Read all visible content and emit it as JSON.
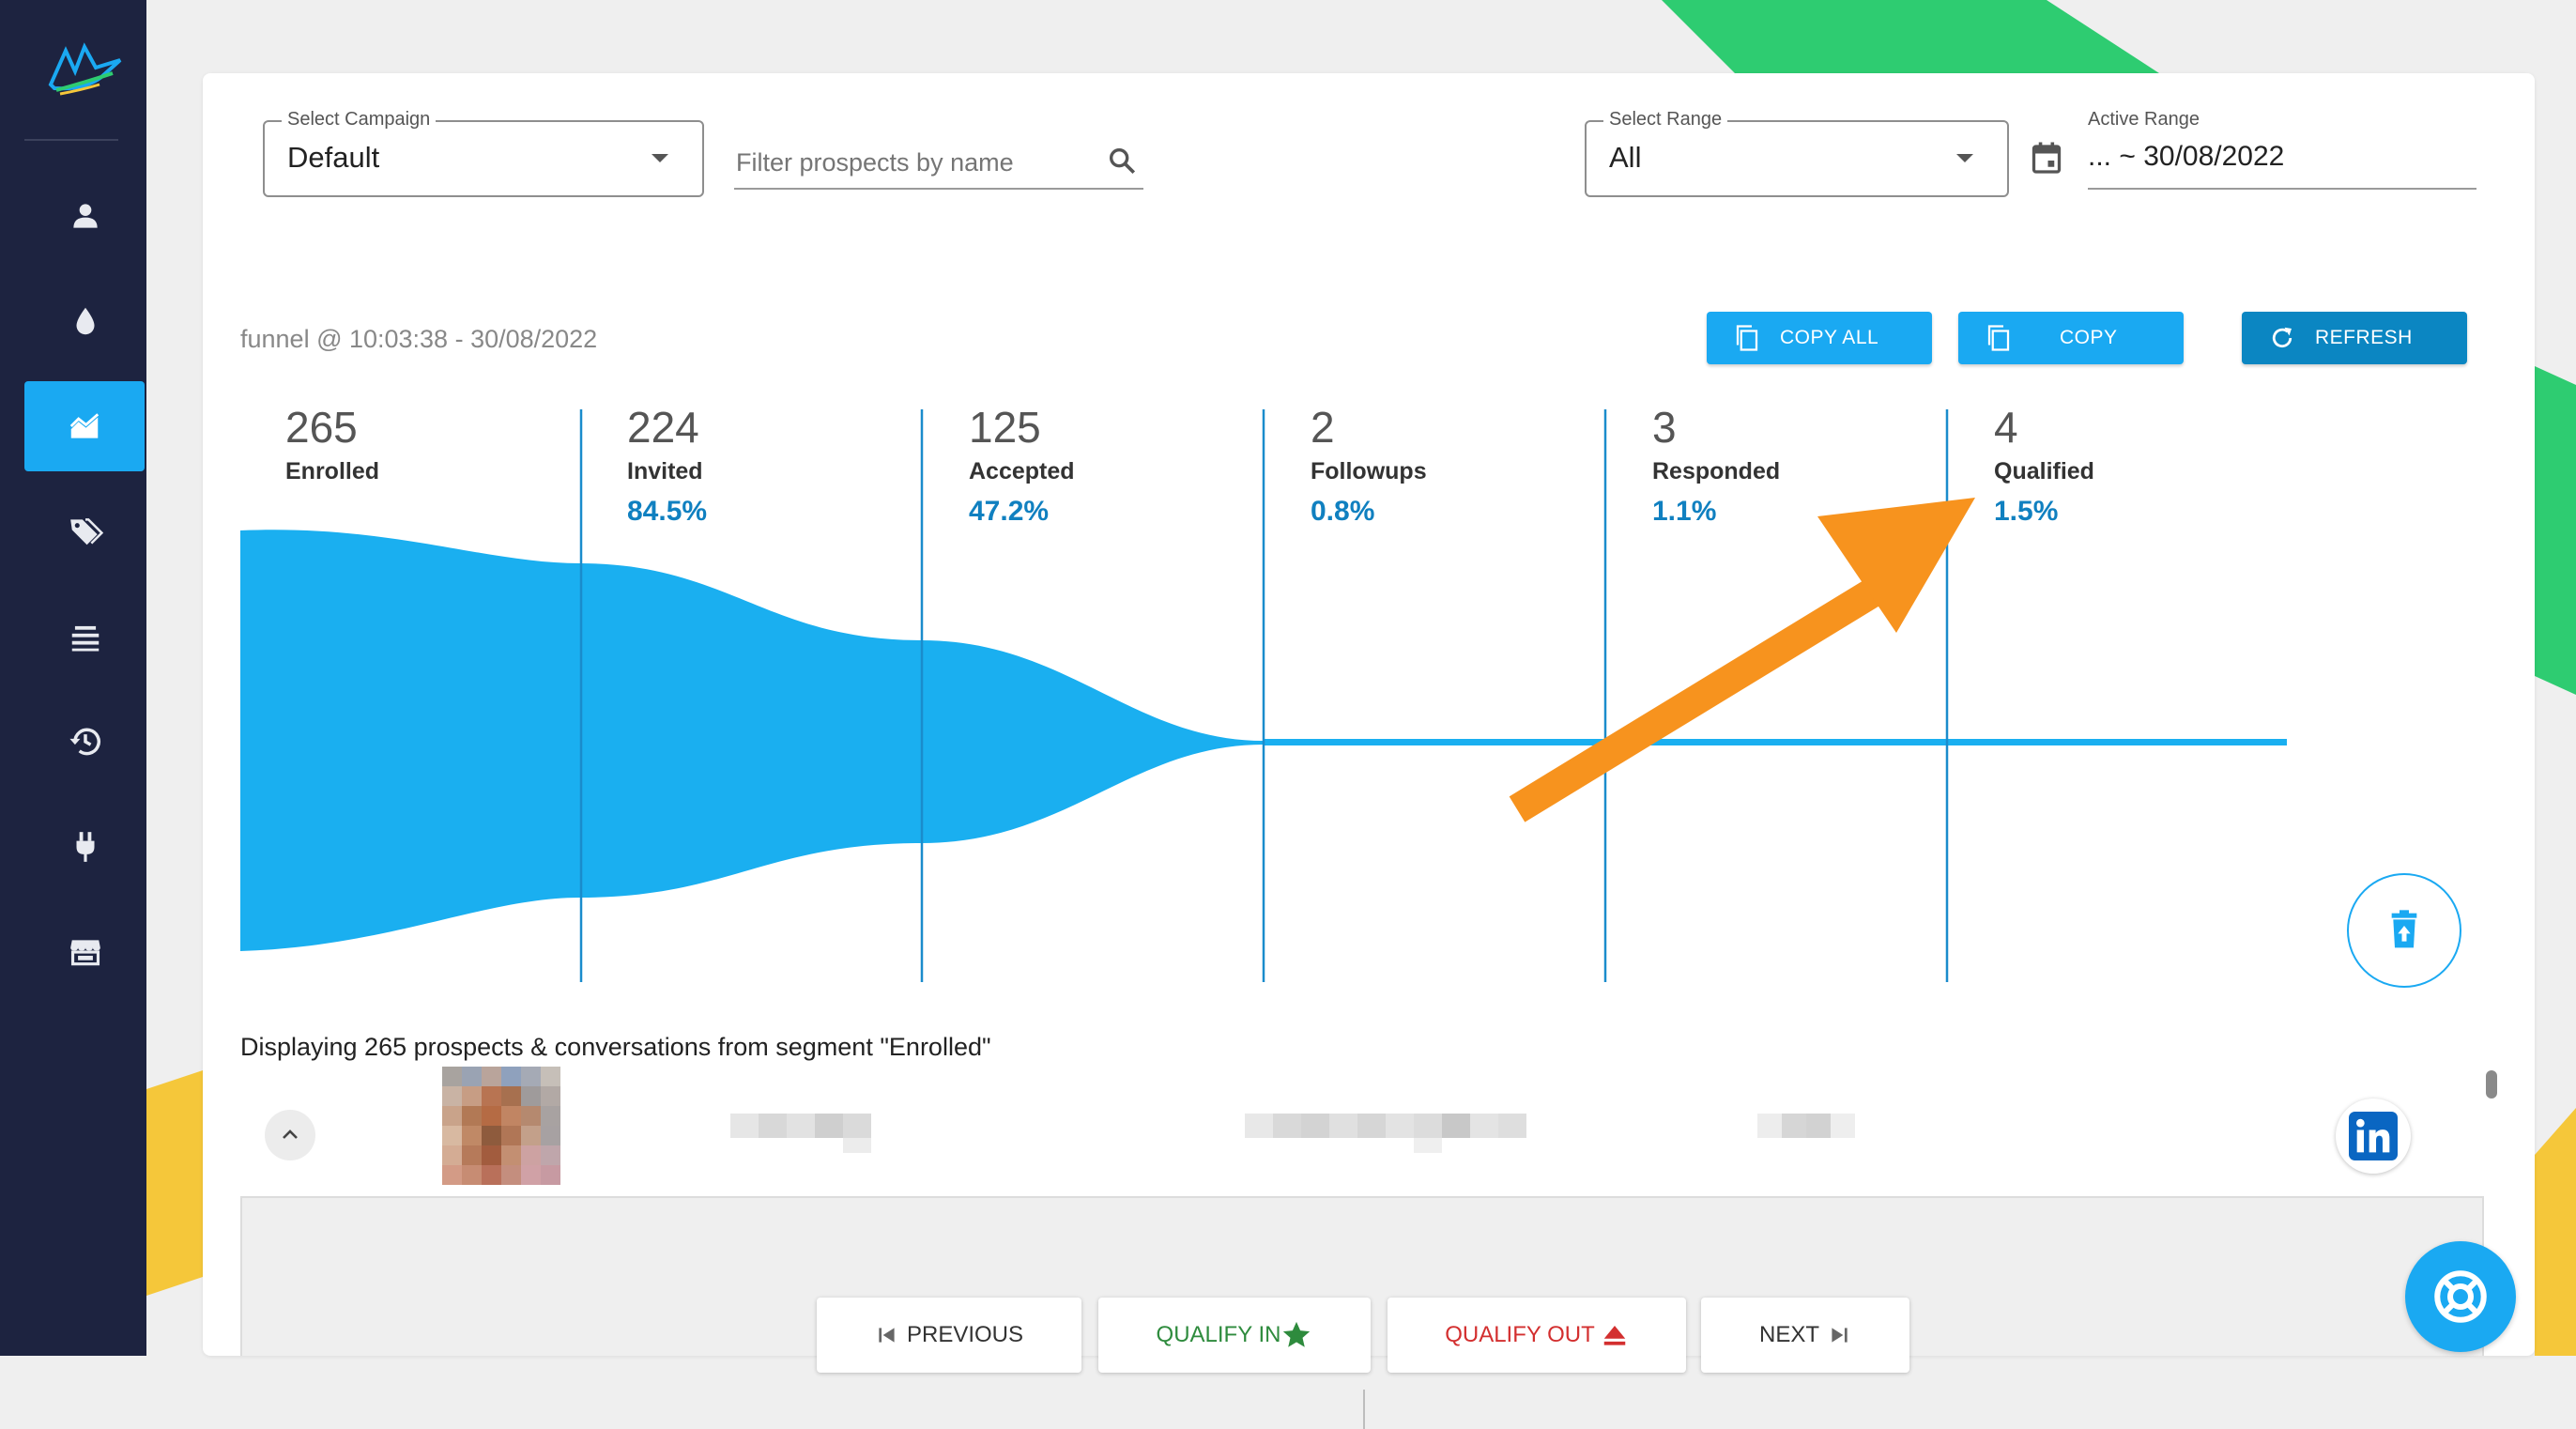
{
  "filters": {
    "campaign_label": "Select Campaign",
    "campaign_value": "Default",
    "search_placeholder": "Filter prospects by name",
    "range_label": "Select Range",
    "range_value": "All",
    "active_range_label": "Active Range",
    "active_range_value": "... ~ 30/08/2022"
  },
  "toolbar": {
    "funnel_caption": "funnel @ 10:03:38 - 30/08/2022",
    "copy_all_label": "COPY ALL",
    "copy_label": "COPY",
    "refresh_label": "REFRESH"
  },
  "funnel": {
    "stages": [
      {
        "count": "265",
        "label": "Enrolled",
        "pct": ""
      },
      {
        "count": "224",
        "label": "Invited",
        "pct": "84.5%"
      },
      {
        "count": "125",
        "label": "Accepted",
        "pct": "47.2%"
      },
      {
        "count": "2",
        "label": "Followups",
        "pct": "0.8%"
      },
      {
        "count": "3",
        "label": "Responded",
        "pct": "1.1%"
      },
      {
        "count": "4",
        "label": "Qualified",
        "pct": "1.5%"
      }
    ],
    "fill_color": "#1aaff0",
    "line_color": "#1a8ccc"
  },
  "segment": {
    "text": "Displaying 265 prospects & conversations from segment \"Enrolled\""
  },
  "actions": {
    "previous_label": "PREVIOUS",
    "qualify_in_label": "QUALIFY IN",
    "qualify_out_label": "QUALIFY OUT",
    "next_label": "NEXT"
  },
  "colors": {
    "sidebar_bg": "#1d2340",
    "accent": "#1aa9f2",
    "refresh_bg": "#0b86c2",
    "arrow": "#f7931e",
    "qualify_in": "#2e8b3d",
    "qualify_out": "#d32f2f"
  },
  "icons": {
    "sidebar": [
      "user-icon",
      "drop-icon",
      "chart-icon",
      "tags-icon",
      "list-icon",
      "history-icon",
      "plug-icon",
      "store-icon"
    ]
  }
}
